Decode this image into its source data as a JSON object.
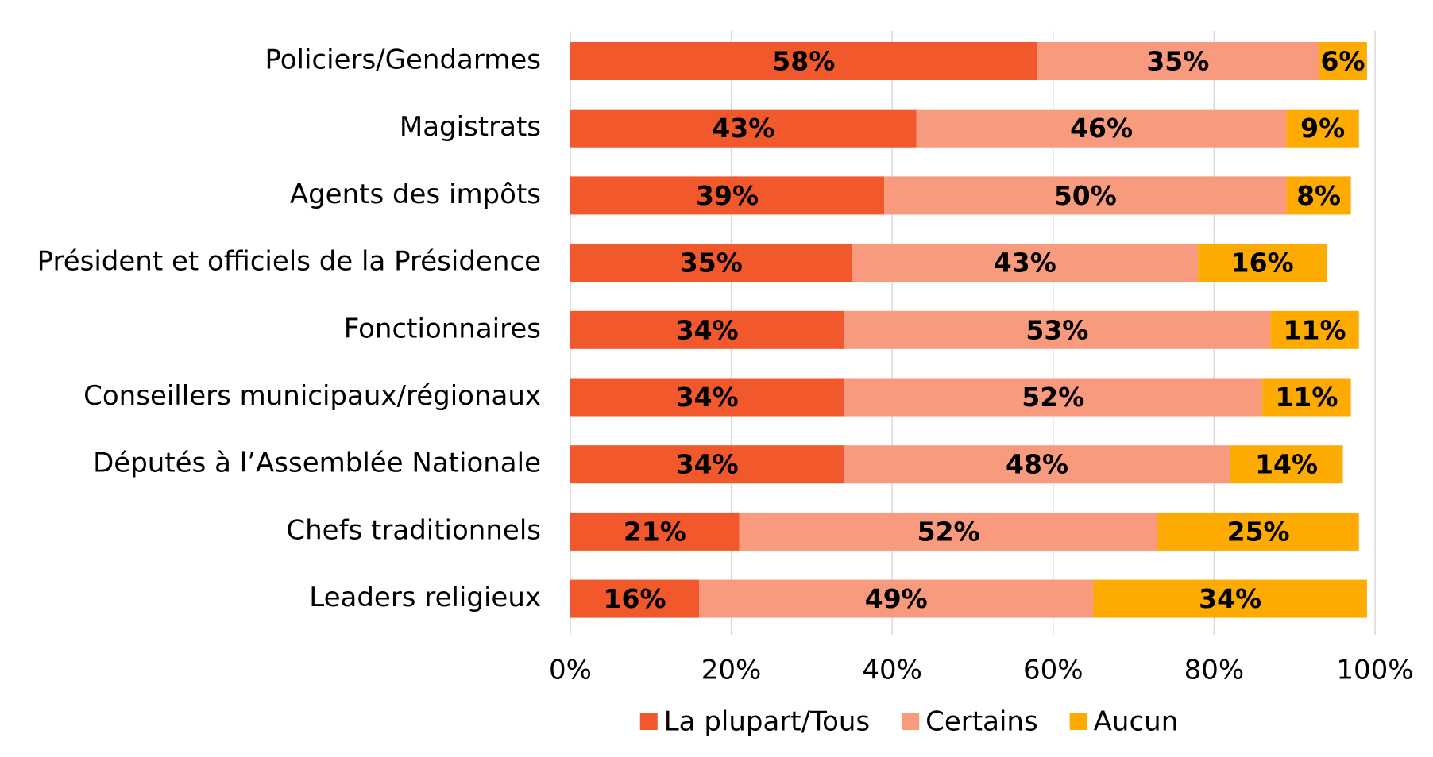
{
  "chart_data": {
    "type": "stacked-bar-horizontal",
    "categories": [
      "Policiers/Gendarmes",
      "Magistrats",
      "Agents des impôts",
      "Président et officiels de la Présidence",
      "Fonctionnaires",
      "Conseillers municipaux/régionaux",
      "Députés à l’Assemblée Nationale",
      "Chefs traditionnels",
      "Leaders religieux"
    ],
    "series": [
      {
        "name": "La plupart/Tous",
        "color": "#f1582b",
        "values": [
          58,
          43,
          39,
          35,
          34,
          34,
          34,
          21,
          16
        ],
        "value_labels": [
          "58%",
          "43%",
          "39%",
          "35%",
          "34%",
          "34%",
          "34%",
          "21%",
          "16%"
        ]
      },
      {
        "name": "Certains",
        "color": "#f79a7e",
        "values": [
          35,
          46,
          50,
          43,
          53,
          52,
          48,
          52,
          49
        ],
        "value_labels": [
          "35%",
          "46%",
          "50%",
          "43%",
          "53%",
          "52%",
          "48%",
          "52%",
          "49%"
        ]
      },
      {
        "name": "Aucun",
        "color": "#fdab00",
        "values": [
          6,
          9,
          8,
          16,
          11,
          11,
          14,
          25,
          34
        ],
        "value_labels": [
          "6%",
          "9%",
          "8%",
          "16%",
          "11%",
          "11%",
          "14%",
          "25%",
          "34%"
        ]
      }
    ],
    "xlim": [
      0,
      100
    ],
    "xticks": [
      {
        "value": 0,
        "label": "0%"
      },
      {
        "value": 20,
        "label": "20%"
      },
      {
        "value": 40,
        "label": "40%"
      },
      {
        "value": 60,
        "label": "60%"
      },
      {
        "value": 80,
        "label": "80%"
      },
      {
        "value": 100,
        "label": "100%"
      }
    ],
    "grid": true,
    "legend": "bottom"
  }
}
